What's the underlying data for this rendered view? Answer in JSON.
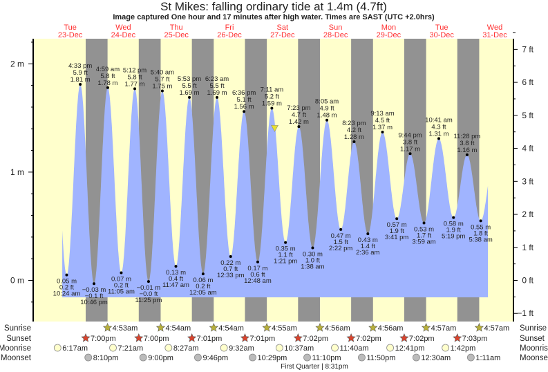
{
  "title": "St Mikes: falling  ordinary tide at 1.4m (4.7ft)",
  "subtitle": "Image captured One hour and 17 minutes after high water. Times are SAST (UTC +2.0hrs)",
  "colors": {
    "day": "#FFFFCC",
    "night": "#929292",
    "water": "#A0B4FF",
    "date_label": "#FF3030",
    "sunrise": "#B8B03A",
    "sunset": "#D9442E",
    "moonrise": "#FFFFCC",
    "moonset": "#BBBBBB",
    "current_marker": "#E8E030"
  },
  "days": [
    {
      "name": "Tue",
      "date": "23-Dec"
    },
    {
      "name": "Wed",
      "date": "24-Dec"
    },
    {
      "name": "Thu",
      "date": "25-Dec"
    },
    {
      "name": "Fri",
      "date": "26-Dec"
    },
    {
      "name": "Sat",
      "date": "27-Dec"
    },
    {
      "name": "Sun",
      "date": "28-Dec"
    },
    {
      "name": "Mon",
      "date": "29-Dec"
    },
    {
      "name": "Tue",
      "date": "30-Dec"
    },
    {
      "name": "Wed",
      "date": "31-Dec"
    }
  ],
  "chart_data": {
    "type": "area",
    "title": "St Mikes: falling  ordinary tide at 1.4m (4.7ft)",
    "left_axis": {
      "unit": "m",
      "ticks": [
        "0 m",
        "1 m",
        "2 m"
      ],
      "range": [
        -0.3,
        2.2
      ]
    },
    "right_axis": {
      "unit": "ft",
      "ticks": [
        "−1 ft",
        "0 ft",
        "1 ft",
        "2 ft",
        "3 ft",
        "4 ft",
        "5 ft",
        "6 ft",
        "7 ft"
      ]
    },
    "current": {
      "day": 4,
      "time": "8:28 am",
      "height_m": 1.4,
      "state": "falling"
    },
    "tides": [
      {
        "day": 0,
        "time": "10:24 am",
        "type": "low",
        "m": "0.05 m",
        "ft": "0.2 ft"
      },
      {
        "day": 0,
        "time": "4:33 pm",
        "type": "high",
        "m": "1.81 m",
        "ft": "5.9 ft"
      },
      {
        "day": 0,
        "time": "10:46 pm",
        "type": "low",
        "m": "−0.03 m",
        "ft": "−0.1 ft"
      },
      {
        "day": 1,
        "time": "4:59 am",
        "type": "high",
        "m": "1.78 m",
        "ft": "5.8 ft"
      },
      {
        "day": 1,
        "time": "11:05 am",
        "type": "low",
        "m": "0.07 m",
        "ft": "0.2 ft"
      },
      {
        "day": 1,
        "time": "5:12 pm",
        "type": "high",
        "m": "1.77 m",
        "ft": "5.8 ft"
      },
      {
        "day": 1,
        "time": "11:25 pm",
        "type": "low",
        "m": "−0.01 m",
        "ft": "−0.0 ft"
      },
      {
        "day": 2,
        "time": "5:40 am",
        "type": "high",
        "m": "1.75 m",
        "ft": "5.7 ft"
      },
      {
        "day": 2,
        "time": "11:47 am",
        "type": "low",
        "m": "0.13 m",
        "ft": "0.4 ft"
      },
      {
        "day": 2,
        "time": "5:53 pm",
        "type": "high",
        "m": "1.69 m",
        "ft": "5.5 ft"
      },
      {
        "day": 3,
        "time": "12:05 am",
        "type": "low",
        "m": "0.06 m",
        "ft": "0.2 ft"
      },
      {
        "day": 3,
        "time": "6:23 am",
        "type": "high",
        "m": "1.69 m",
        "ft": "5.5 ft"
      },
      {
        "day": 3,
        "time": "12:33 pm",
        "type": "low",
        "m": "0.22 m",
        "ft": "0.7 ft"
      },
      {
        "day": 3,
        "time": "6:36 pm",
        "type": "high",
        "m": "1.56 m",
        "ft": "5.1 ft"
      },
      {
        "day": 4,
        "time": "12:48 am",
        "type": "low",
        "m": "0.17 m",
        "ft": "0.6 ft"
      },
      {
        "day": 4,
        "time": "7:11 am",
        "type": "high",
        "m": "1.59 m",
        "ft": "5.2 ft"
      },
      {
        "day": 4,
        "time": "1:21 pm",
        "type": "low",
        "m": "0.35 m",
        "ft": "1.1 ft"
      },
      {
        "day": 4,
        "time": "7:23 pm",
        "type": "high",
        "m": "1.42 m",
        "ft": "4.7 ft"
      },
      {
        "day": 5,
        "time": "1:38 am",
        "type": "low",
        "m": "0.30 m",
        "ft": "1.0 ft"
      },
      {
        "day": 5,
        "time": "8:05 am",
        "type": "high",
        "m": "1.48 m",
        "ft": "4.9 ft"
      },
      {
        "day": 5,
        "time": "2:22 pm",
        "type": "low",
        "m": "0.47 m",
        "ft": "1.5 ft"
      },
      {
        "day": 5,
        "time": "8:23 pm",
        "type": "high",
        "m": "1.28 m",
        "ft": "4.2 ft"
      },
      {
        "day": 6,
        "time": "2:36 am",
        "type": "low",
        "m": "0.43 m",
        "ft": "1.4 ft"
      },
      {
        "day": 6,
        "time": "9:13 am",
        "type": "high",
        "m": "1.37 m",
        "ft": "4.5 ft"
      },
      {
        "day": 6,
        "time": "3:41 pm",
        "type": "low",
        "m": "0.57 m",
        "ft": "1.9 ft"
      },
      {
        "day": 6,
        "time": "9:44 pm",
        "type": "high",
        "m": "1.17 m",
        "ft": "3.8 ft"
      },
      {
        "day": 7,
        "time": "3:59 am",
        "type": "low",
        "m": "0.53 m",
        "ft": "1.7 ft"
      },
      {
        "day": 7,
        "time": "10:41 am",
        "type": "high",
        "m": "1.31 m",
        "ft": "4.3 ft"
      },
      {
        "day": 7,
        "time": "5:19 pm",
        "type": "low",
        "m": "0.58 m",
        "ft": "1.9 ft"
      },
      {
        "day": 7,
        "time": "11:28 pm",
        "type": "high",
        "m": "1.16 m",
        "ft": "3.8 ft"
      },
      {
        "day": 8,
        "time": "5:38 am",
        "type": "low",
        "m": "0.55 m",
        "ft": "1.8 ft"
      }
    ]
  },
  "astro": {
    "labels": {
      "sunrise": "Sunrise",
      "sunset": "Sunset",
      "moonrise": "Moonrise",
      "moonset": "Moonset"
    },
    "sunrise": [
      {
        "day": 1,
        "time": "4:53am"
      },
      {
        "day": 2,
        "time": "4:54am"
      },
      {
        "day": 3,
        "time": "4:54am"
      },
      {
        "day": 4,
        "time": "4:55am"
      },
      {
        "day": 5,
        "time": "4:56am"
      },
      {
        "day": 6,
        "time": "4:56am"
      },
      {
        "day": 7,
        "time": "4:57am"
      },
      {
        "day": 8,
        "time": "4:57am"
      }
    ],
    "sunset": [
      {
        "day": 0,
        "time": "7:00pm"
      },
      {
        "day": 1,
        "time": "7:00pm"
      },
      {
        "day": 2,
        "time": "7:01pm"
      },
      {
        "day": 3,
        "time": "7:01pm"
      },
      {
        "day": 4,
        "time": "7:02pm"
      },
      {
        "day": 5,
        "time": "7:02pm"
      },
      {
        "day": 6,
        "time": "7:02pm"
      },
      {
        "day": 7,
        "time": "7:03pm"
      }
    ],
    "moonrise": [
      {
        "day": 0,
        "time": "6:17am"
      },
      {
        "day": 1,
        "time": "7:21am"
      },
      {
        "day": 2,
        "time": "8:27am"
      },
      {
        "day": 3,
        "time": "9:32am"
      },
      {
        "day": 4,
        "time": "10:37am"
      },
      {
        "day": 5,
        "time": "11:40am"
      },
      {
        "day": 6,
        "time": "12:41pm"
      },
      {
        "day": 7,
        "time": "1:42pm"
      }
    ],
    "moonset": [
      {
        "day": 0,
        "time": "8:10pm"
      },
      {
        "day": 1,
        "time": "9:00pm"
      },
      {
        "day": 2,
        "time": "9:46pm"
      },
      {
        "day": 3,
        "time": "10:29pm"
      },
      {
        "day": 4,
        "time": "11:10pm"
      },
      {
        "day": 5,
        "time": "11:50pm"
      },
      {
        "day": 7,
        "time": "12:30am"
      },
      {
        "day": 8,
        "time": "1:11am"
      }
    ],
    "moon_phase": "First Quarter | 8:31pm"
  }
}
